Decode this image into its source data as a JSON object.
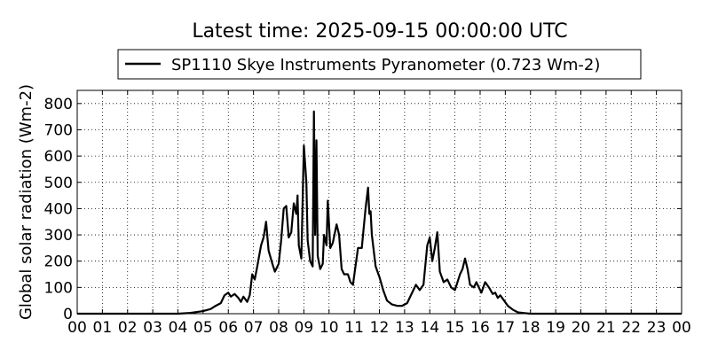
{
  "chart_data": {
    "type": "line",
    "title": "Latest time: 2025-09-15 00:00:00 UTC",
    "y_label": "Global solar radiation (Wm-2)",
    "grid": true,
    "legend_position": "top",
    "xlim": [
      0,
      24
    ],
    "ylim": [
      0,
      850
    ],
    "xticks": [
      {
        "value": 0,
        "label": "00"
      },
      {
        "value": 1,
        "label": "01"
      },
      {
        "value": 2,
        "label": "02"
      },
      {
        "value": 3,
        "label": "03"
      },
      {
        "value": 4,
        "label": "04"
      },
      {
        "value": 5,
        "label": "05"
      },
      {
        "value": 6,
        "label": "06"
      },
      {
        "value": 7,
        "label": "07"
      },
      {
        "value": 8,
        "label": "08"
      },
      {
        "value": 9,
        "label": "09"
      },
      {
        "value": 10,
        "label": "10"
      },
      {
        "value": 11,
        "label": "11"
      },
      {
        "value": 12,
        "label": "12"
      },
      {
        "value": 13,
        "label": "13"
      },
      {
        "value": 14,
        "label": "14"
      },
      {
        "value": 15,
        "label": "15"
      },
      {
        "value": 16,
        "label": "16"
      },
      {
        "value": 17,
        "label": "17"
      },
      {
        "value": 18,
        "label": "18"
      },
      {
        "value": 19,
        "label": "19"
      },
      {
        "value": 20,
        "label": "20"
      },
      {
        "value": 21,
        "label": "21"
      },
      {
        "value": 22,
        "label": "22"
      },
      {
        "value": 23,
        "label": "23"
      },
      {
        "value": 24,
        "label": "00"
      }
    ],
    "yticks": [
      0,
      100,
      200,
      300,
      400,
      500,
      600,
      700,
      800
    ],
    "x": [
      0,
      4,
      4.5,
      5,
      5.3,
      5.5,
      5.7,
      5.85,
      6,
      6.1,
      6.25,
      6.4,
      6.5,
      6.6,
      6.75,
      6.85,
      6.95,
      7.05,
      7.15,
      7.3,
      7.4,
      7.5,
      7.6,
      7.75,
      7.85,
      8,
      8.1,
      8.2,
      8.3,
      8.4,
      8.5,
      8.6,
      8.7,
      8.75,
      8.8,
      8.9,
      9,
      9.1,
      9.15,
      9.25,
      9.35,
      9.4,
      9.45,
      9.5,
      9.55,
      9.65,
      9.75,
      9.8,
      9.9,
      9.95,
      10.05,
      10.15,
      10.3,
      10.4,
      10.5,
      10.6,
      10.75,
      10.85,
      10.95,
      11.05,
      11.15,
      11.3,
      11.45,
      11.55,
      11.6,
      11.65,
      11.7,
      11.85,
      12,
      12.15,
      12.3,
      12.5,
      12.7,
      12.9,
      13.1,
      13.3,
      13.45,
      13.6,
      13.75,
      13.9,
      14,
      14.1,
      14.2,
      14.3,
      14.4,
      14.55,
      14.7,
      14.85,
      15,
      15.1,
      15.2,
      15.3,
      15.4,
      15.5,
      15.6,
      15.75,
      15.85,
      15.95,
      16.05,
      16.2,
      16.35,
      16.5,
      16.6,
      16.7,
      16.8,
      16.95,
      17.1,
      17.3,
      17.5,
      17.8,
      18,
      24
    ],
    "series": [
      {
        "name": "SP1110 Skye Instruments Pyranometer (0.723 Wm-2)",
        "color": "#000000",
        "values": [
          0,
          0,
          3,
          10,
          18,
          30,
          40,
          70,
          80,
          65,
          75,
          60,
          45,
          65,
          45,
          70,
          150,
          130,
          180,
          260,
          290,
          350,
          240,
          190,
          160,
          190,
          280,
          400,
          410,
          290,
          310,
          420,
          380,
          450,
          260,
          210,
          640,
          500,
          280,
          200,
          180,
          770,
          300,
          660,
          220,
          170,
          190,
          300,
          260,
          430,
          250,
          270,
          340,
          300,
          170,
          150,
          150,
          120,
          110,
          180,
          250,
          250,
          400,
          480,
          380,
          390,
          300,
          180,
          140,
          90,
          50,
          35,
          30,
          30,
          40,
          80,
          110,
          90,
          110,
          260,
          290,
          200,
          250,
          310,
          160,
          120,
          130,
          100,
          90,
          120,
          150,
          170,
          210,
          170,
          110,
          100,
          120,
          100,
          80,
          120,
          100,
          75,
          80,
          60,
          70,
          50,
          30,
          15,
          5,
          2,
          0,
          0
        ]
      }
    ]
  }
}
